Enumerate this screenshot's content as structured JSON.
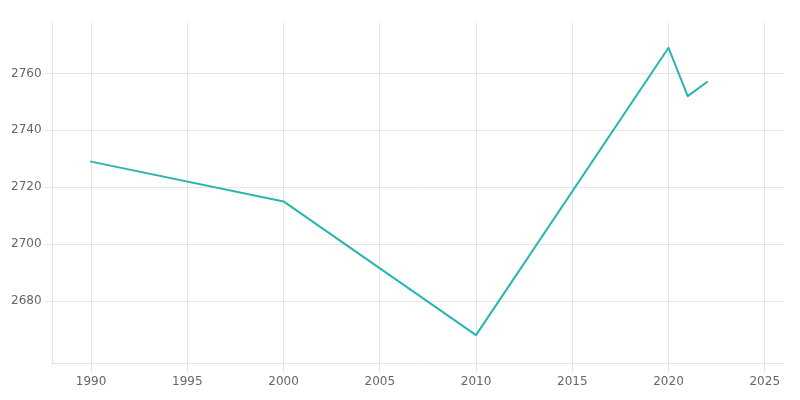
{
  "chart_data": {
    "type": "line",
    "x": [
      1990,
      2000,
      2010,
      2020,
      2021,
      2022
    ],
    "values": [
      2729,
      2715,
      2668,
      2769,
      2752,
      2757
    ],
    "color": "#2ab5b0",
    "xlim": [
      1988,
      2026
    ],
    "ylim": [
      2658,
      2778
    ],
    "xticks": [
      1990,
      1995,
      2000,
      2005,
      2010,
      2015,
      2020,
      2025
    ],
    "yticks": [
      2680,
      2700,
      2720,
      2740,
      2760
    ],
    "grid": true
  }
}
